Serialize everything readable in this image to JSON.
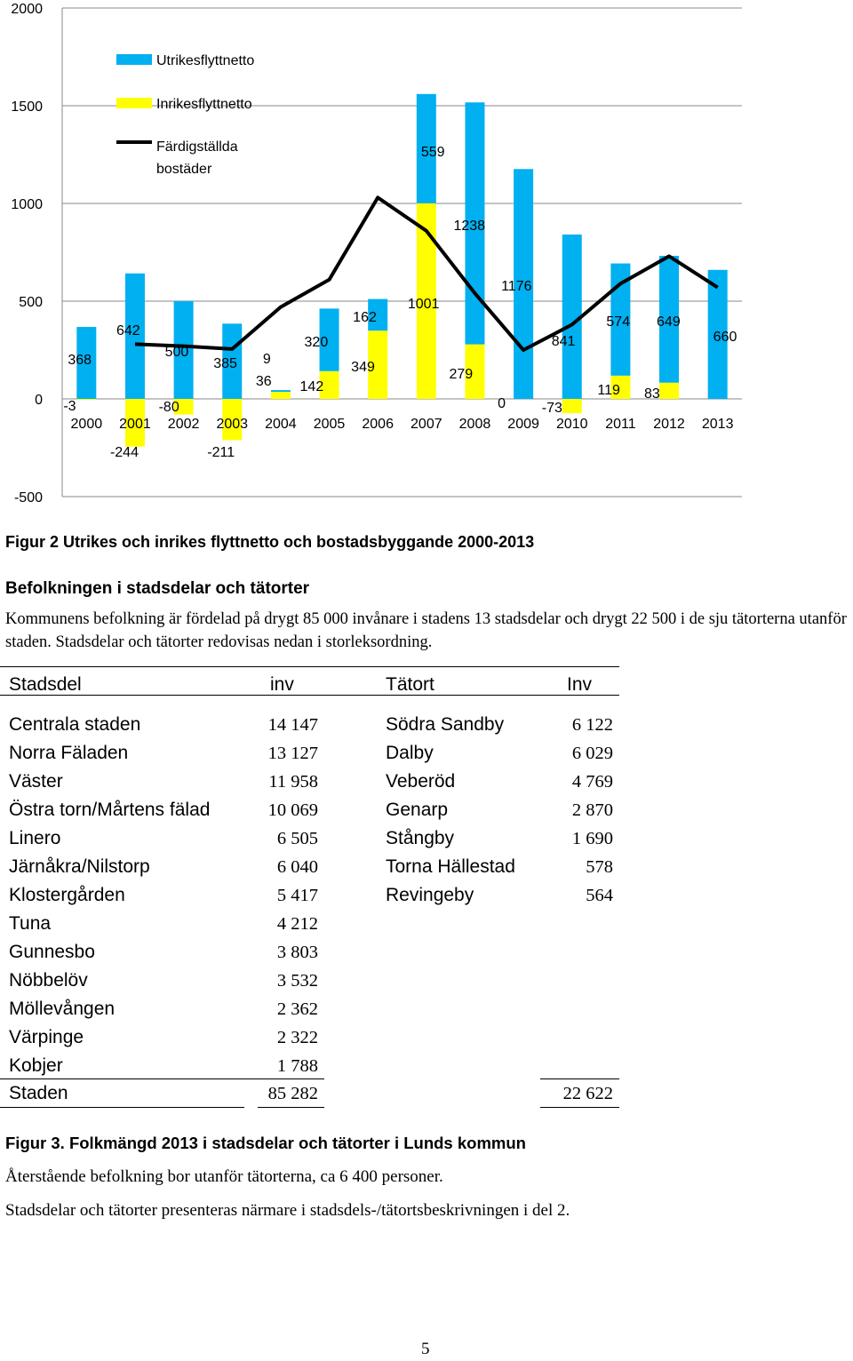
{
  "chart_data": {
    "type": "bar",
    "categories": [
      "2000",
      "2001",
      "2002",
      "2003",
      "2004",
      "2005",
      "2006",
      "2007",
      "2008",
      "2009",
      "2010",
      "2011",
      "2012",
      "2013"
    ],
    "series": [
      {
        "name": "Utrikesflyttnetto",
        "type": "bar",
        "color": "#00B0F0",
        "values": [
          368,
          642,
          500,
          385,
          9,
          320,
          162,
          559,
          1238,
          1176,
          841,
          574,
          649,
          660
        ]
      },
      {
        "name": "Inrikesflyttnetto",
        "type": "bar",
        "color": "#FFFF00",
        "values": [
          -3,
          -244,
          -80,
          -211,
          36,
          142,
          349,
          1001,
          279,
          0,
          -73,
          119,
          83,
          null
        ]
      },
      {
        "name": "Färdigställda bostäder",
        "type": "line",
        "color": "#000000",
        "values": [
          null,
          280,
          270,
          255,
          470,
          610,
          1030,
          860,
          540,
          250,
          380,
          590,
          730,
          570
        ]
      }
    ],
    "ylim": [
      -500,
      2000
    ],
    "yticks": [
      -500,
      0,
      500,
      1000,
      1500,
      2000
    ],
    "grid": true,
    "legend_position": "top-left"
  },
  "text": {
    "fig2_caption": "Figur 2 Utrikes och inrikes flyttnetto och bostadsbyggande 2000-2013",
    "heading": "Befolkningen i stadsdelar och tätorter",
    "paragraph": "Kommunens befolkning är fördelad på drygt 85 000 invånare i stadens 13 stadsdelar och drygt 22 500 i de sju tätorterna utanför staden. Stadsdelar och tätorter redovisas nedan i storleksordning.",
    "fig3_caption": "Figur 3. Folkmängd 2013 i stadsdelar och tätorter i Lunds kommun",
    "remaining": "Återstående befolkning bor utanför tätorterna, ca 6 400 personer.",
    "presented": "Stadsdelar och tätorter presenteras närmare i stadsdels-/tätortsbeskrivningen i del 2.",
    "page_number": "5"
  },
  "table": {
    "headers": {
      "stadsdel": "Stadsdel",
      "inv": "inv",
      "tatort": "Tätort",
      "Inv": "Inv"
    },
    "stadsdelar": [
      {
        "name": "Centrala staden",
        "inv": "14 147"
      },
      {
        "name": "Norra Fäladen",
        "inv": "13 127"
      },
      {
        "name": "Väster",
        "inv": "11 958"
      },
      {
        "name": "Östra torn/Mårtens fälad",
        "inv": "10 069"
      },
      {
        "name": "Linero",
        "inv": "6 505"
      },
      {
        "name": "Järnåkra/Nilstorp",
        "inv": "6 040"
      },
      {
        "name": "Klostergården",
        "inv": "5 417"
      },
      {
        "name": "Tuna",
        "inv": "4 212"
      },
      {
        "name": "Gunnesbo",
        "inv": "3 803"
      },
      {
        "name": "Nöbbelöv",
        "inv": "3 532"
      },
      {
        "name": "Möllevången",
        "inv": "2 362"
      },
      {
        "name": "Värpinge",
        "inv": "2 322"
      },
      {
        "name": "Kobjer",
        "inv": "1 788"
      }
    ],
    "tatorter": [
      {
        "name": "Södra Sandby",
        "inv": "6 122"
      },
      {
        "name": "Dalby",
        "inv": "6 029"
      },
      {
        "name": "Veberöd",
        "inv": "4 769"
      },
      {
        "name": "Genarp",
        "inv": "2 870"
      },
      {
        "name": "Stångby",
        "inv": "1 690"
      },
      {
        "name": "Torna Hällestad",
        "inv": "578"
      },
      {
        "name": "Revingeby",
        "inv": "564"
      }
    ],
    "total": {
      "label": "Staden",
      "stadsdelar": "85 282",
      "tatorter": "22 622"
    }
  }
}
